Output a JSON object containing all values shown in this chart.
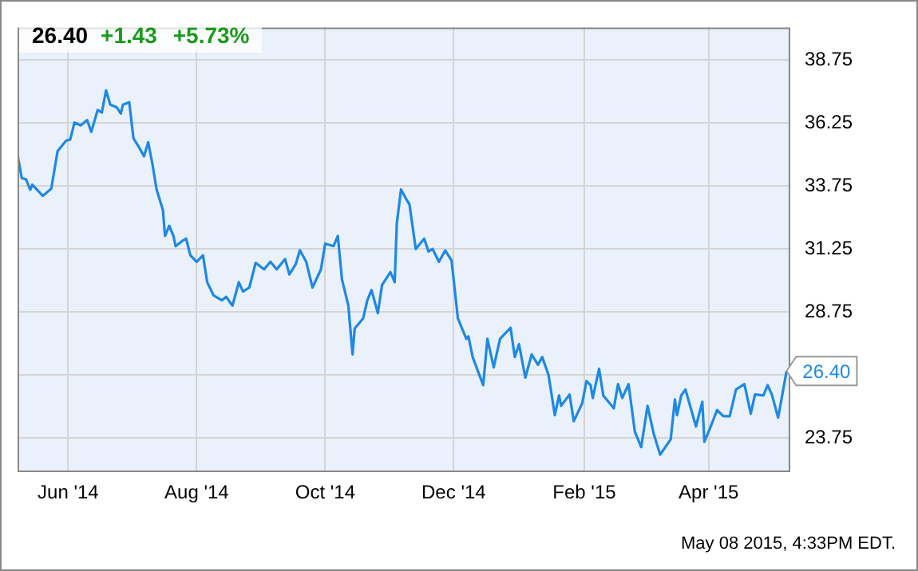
{
  "chart_data": {
    "type": "line",
    "title": "26.40",
    "subtitle": "+1.43 +5.73%",
    "x": [
      "2014-05-08",
      "2014-05-10",
      "2014-05-12",
      "2014-05-14",
      "2014-05-15",
      "2014-05-20",
      "2014-05-24",
      "2014-05-27",
      "2014-05-31",
      "2014-06-02",
      "2014-06-04",
      "2014-06-07",
      "2014-06-10",
      "2014-06-12",
      "2014-06-15",
      "2014-06-17",
      "2014-06-19",
      "2014-06-21",
      "2014-06-24",
      "2014-06-26",
      "2014-06-27",
      "2014-06-30",
      "2014-07-02",
      "2014-07-05",
      "2014-07-07",
      "2014-07-09",
      "2014-07-11",
      "2014-07-13",
      "2014-07-16",
      "2014-07-17",
      "2014-07-19",
      "2014-07-21",
      "2014-07-22",
      "2014-07-25",
      "2014-07-27",
      "2014-07-29",
      "2014-08-01",
      "2014-08-04",
      "2014-08-06",
      "2014-08-09",
      "2014-08-13",
      "2014-08-15",
      "2014-08-18",
      "2014-08-21",
      "2014-08-23",
      "2014-08-26",
      "2014-08-29",
      "2014-09-02",
      "2014-09-05",
      "2014-09-08",
      "2014-09-12",
      "2014-09-14",
      "2014-09-17",
      "2014-09-19",
      "2014-09-22",
      "2014-09-25",
      "2014-09-29",
      "2014-10-01",
      "2014-10-05",
      "2014-10-07",
      "2014-10-09",
      "2014-10-12",
      "2014-10-14",
      "2014-10-15",
      "2014-10-19",
      "2014-10-21",
      "2014-10-23",
      "2014-10-26",
      "2014-10-28",
      "2014-11-01",
      "2014-11-03",
      "2014-11-04",
      "2014-11-06",
      "2014-11-09",
      "2014-11-10",
      "2014-11-13",
      "2014-11-17",
      "2014-11-19",
      "2014-11-21",
      "2014-11-24",
      "2014-11-27",
      "2014-11-30",
      "2014-12-03",
      "2014-12-07",
      "2014-12-08",
      "2014-12-10",
      "2014-12-15",
      "2014-12-17",
      "2014-12-20",
      "2014-12-23",
      "2014-12-28",
      "2014-12-30",
      "2015-01-01",
      "2015-01-04",
      "2015-01-07",
      "2015-01-10",
      "2015-01-12",
      "2015-01-15",
      "2015-01-18",
      "2015-01-20",
      "2015-01-21",
      "2015-01-25",
      "2015-01-27",
      "2015-01-31",
      "2015-02-02",
      "2015-02-04",
      "2015-02-05",
      "2015-02-08",
      "2015-02-10",
      "2015-02-15",
      "2015-02-17",
      "2015-02-19",
      "2015-02-22",
      "2015-02-25",
      "2015-02-28",
      "2015-03-03",
      "2015-03-06",
      "2015-03-09",
      "2015-03-14",
      "2015-03-16",
      "2015-03-17",
      "2015-03-19",
      "2015-03-21",
      "2015-03-26",
      "2015-03-29",
      "2015-03-30",
      "2015-04-02",
      "2015-04-05",
      "2015-04-08",
      "2015-04-11",
      "2015-04-14",
      "2015-04-18",
      "2015-04-21",
      "2015-04-23",
      "2015-04-27",
      "2015-04-29",
      "2015-05-01",
      "2015-05-04",
      "2015-05-08"
    ],
    "series": [
      {
        "color": "#1e88e5",
        "values": [
          34.99,
          34.06,
          34.02,
          33.6,
          33.8,
          33.36,
          33.65,
          35.14,
          35.55,
          35.6,
          36.27,
          36.16,
          36.37,
          35.9,
          36.77,
          36.67,
          37.55,
          36.98,
          36.88,
          36.63,
          36.98,
          37.08,
          35.65,
          35.24,
          34.93,
          35.49,
          34.63,
          33.61,
          32.79,
          31.77,
          32.17,
          31.77,
          31.36,
          31.56,
          31.66,
          31.0,
          30.74,
          31.0,
          29.93,
          29.41,
          29.21,
          29.35,
          29.0,
          29.93,
          29.56,
          29.72,
          30.7,
          30.44,
          30.74,
          30.44,
          30.85,
          30.24,
          30.64,
          31.2,
          30.74,
          29.72,
          30.44,
          31.46,
          31.36,
          31.77,
          30.03,
          29.0,
          27.06,
          28.09,
          28.49,
          29.21,
          29.62,
          28.7,
          29.82,
          30.33,
          29.93,
          32.27,
          33.61,
          33.15,
          33.03,
          31.25,
          31.66,
          31.15,
          31.25,
          30.74,
          31.19,
          30.79,
          28.49,
          27.68,
          27.78,
          26.96,
          25.84,
          27.68,
          26.55,
          27.68,
          28.12,
          26.96,
          27.47,
          26.14,
          27.06,
          26.65,
          26.96,
          26.25,
          24.65,
          25.43,
          25.02,
          25.47,
          24.41,
          25.12,
          26.0,
          25.84,
          25.33,
          26.49,
          25.43,
          24.92,
          25.88,
          25.33,
          25.88,
          23.99,
          23.38,
          25.02,
          23.89,
          23.08,
          23.69,
          25.27,
          24.65,
          25.43,
          25.67,
          24.2,
          25.18,
          23.59,
          24.2,
          24.85,
          24.61,
          24.61,
          25.67,
          25.88,
          24.71,
          25.47,
          25.43,
          25.84,
          25.47,
          24.55,
          26.4
        ]
      }
    ],
    "xlim": [
      "2014-05-08",
      "2015-05-09"
    ],
    "xticks": [
      {
        "value": "2014-06-01",
        "label": "Jun '14"
      },
      {
        "value": "2014-08-01",
        "label": "Aug '14"
      },
      {
        "value": "2014-10-01",
        "label": "Oct '14"
      },
      {
        "value": "2014-12-01",
        "label": "Dec '14"
      },
      {
        "value": "2015-02-01",
        "label": "Feb '15"
      },
      {
        "value": "2015-04-01",
        "label": "Apr '15"
      }
    ],
    "ylim": [
      22.45,
      40.05
    ],
    "yticks": [
      23.75,
      {
        "value": 26.25,
        "label": null
      },
      28.75,
      31.25,
      33.75,
      36.25,
      38.75
    ],
    "grid": true,
    "legend": false,
    "marker": "none",
    "line_style": "solid",
    "annotations": [
      {
        "text": "26.40",
        "x": "2015-05-08",
        "y": 26.4
      },
      "May 08 2015, 4:33PM EDT."
    ]
  }
}
